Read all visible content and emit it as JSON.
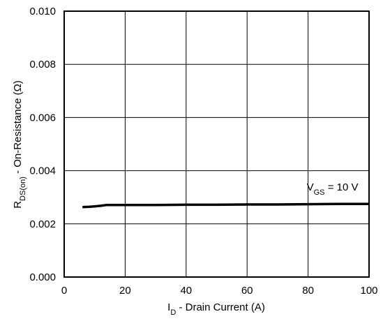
{
  "chart_data": {
    "type": "line",
    "title": "",
    "xlabel": {
      "main": "I",
      "sub": "D",
      "rest": " - Drain Current (A)"
    },
    "ylabel": {
      "main": "R",
      "sub": "DS(on)",
      "rest": " - On-Resistance (Ω)"
    },
    "xlim": [
      0,
      100
    ],
    "ylim": [
      0.0,
      0.01
    ],
    "xticks": [
      "0",
      "20",
      "40",
      "60",
      "80",
      "100"
    ],
    "yticks": [
      "0.000",
      "0.002",
      "0.004",
      "0.006",
      "0.008",
      "0.010"
    ],
    "grid": true,
    "series": [
      {
        "x": [
          6,
          8,
          10,
          12,
          14,
          16,
          20,
          30,
          40,
          50,
          60,
          70,
          80,
          90,
          100
        ],
        "y": [
          0.00263,
          0.00264,
          0.00266,
          0.00268,
          0.00271,
          0.00271,
          0.00271,
          0.00271,
          0.00272,
          0.00272,
          0.00273,
          0.00273,
          0.00274,
          0.00275,
          0.00275
        ],
        "color": "#000000"
      }
    ],
    "annotations": [
      {
        "main": "V",
        "sub": "GS",
        "rest": " = 10 V",
        "x": 88,
        "y": 0.00325
      }
    ]
  }
}
